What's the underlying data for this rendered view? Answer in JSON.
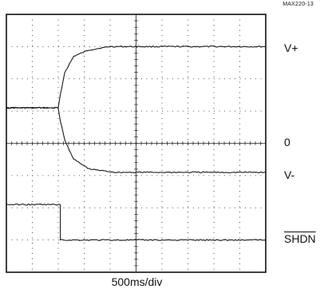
{
  "figure_code": "MAX220-13",
  "trace_labels": {
    "vplus": "V+",
    "zero": "0",
    "vminus": "V-",
    "shdn": "SHDN"
  },
  "xlabel": "500ms/div",
  "colors": {
    "trace": "#1a1a1a",
    "grid": "#222222",
    "frame": "#000000"
  },
  "chart_data": {
    "type": "line",
    "title": "",
    "xlabel": "500ms/div",
    "ylabel": "",
    "grid": true,
    "xlim": [
      0,
      10
    ],
    "ylim": [
      0,
      8
    ],
    "xdivisions": 10,
    "ydivisions": 8,
    "series": [
      {
        "name": "V+",
        "points": [
          [
            0,
            5.1
          ],
          [
            2.0,
            5.1
          ],
          [
            2.08,
            5.5
          ],
          [
            2.25,
            6.2
          ],
          [
            2.6,
            6.7
          ],
          [
            3.2,
            6.9
          ],
          [
            4.0,
            7.0
          ],
          [
            10,
            7.0
          ]
        ]
      },
      {
        "name": "V-",
        "points": [
          [
            0,
            5.1
          ],
          [
            2.0,
            5.1
          ],
          [
            2.08,
            4.7
          ],
          [
            2.25,
            4.1
          ],
          [
            2.6,
            3.5
          ],
          [
            3.2,
            3.2
          ],
          [
            4.2,
            3.1
          ],
          [
            10,
            3.1
          ]
        ]
      },
      {
        "name": "SHDN",
        "points": [
          [
            0,
            2.1
          ],
          [
            2.08,
            2.1
          ],
          [
            2.08,
            1.0
          ],
          [
            10,
            1.0
          ]
        ]
      }
    ]
  }
}
